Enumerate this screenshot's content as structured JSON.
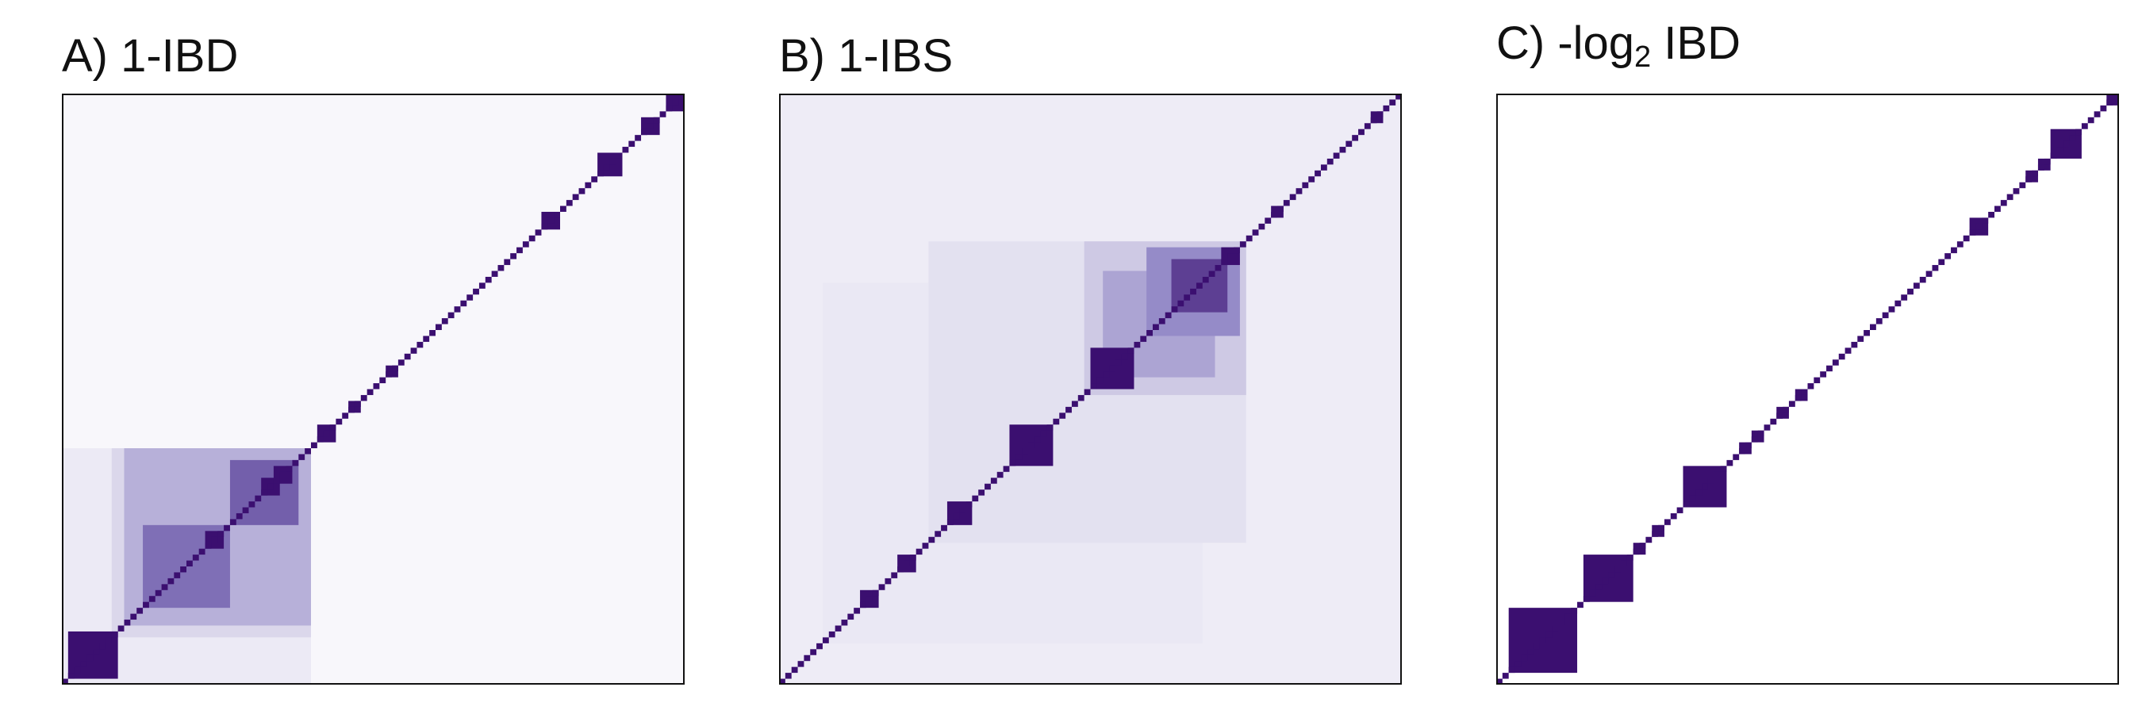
{
  "colors": {
    "max": "#3b0f70",
    "mid": "#8a7fc2",
    "light": "#d9d5ea",
    "faint": "#f3f2f9",
    "background": "#ffffff"
  },
  "chart_data": [
    {
      "type": "heatmap",
      "title": "A) 1-IBD",
      "title_parts": {
        "prefix": "A) 1-IBD",
        "sub": "",
        "suffix": ""
      },
      "xlabel": "",
      "ylabel": "",
      "grid": false,
      "legend": "none",
      "n": 100,
      "base_value": 0.03,
      "diagonal_value": 1.0,
      "blocks": [
        {
          "start": 1,
          "end": 40,
          "value": 0.12
        },
        {
          "start": 9,
          "end": 40,
          "value": 0.28
        },
        {
          "start": 11,
          "end": 40,
          "value": 0.45
        },
        {
          "start": 14,
          "end": 27,
          "value": 0.7
        },
        {
          "start": 28,
          "end": 38,
          "value": 0.75
        },
        {
          "start": 2,
          "end": 9,
          "value": 1.0
        },
        {
          "start": 24,
          "end": 26,
          "value": 1.0
        },
        {
          "start": 33,
          "end": 35,
          "value": 1.0
        },
        {
          "start": 35,
          "end": 37,
          "value": 1.0
        },
        {
          "start": 42,
          "end": 44,
          "value": 1.0
        },
        {
          "start": 47,
          "end": 48,
          "value": 1.0
        },
        {
          "start": 53,
          "end": 54,
          "value": 1.0
        },
        {
          "start": 78,
          "end": 80,
          "value": 1.0
        },
        {
          "start": 87,
          "end": 90,
          "value": 1.0
        },
        {
          "start": 94,
          "end": 96,
          "value": 1.0
        },
        {
          "start": 98,
          "end": 100,
          "value": 1.0
        }
      ]
    },
    {
      "type": "heatmap",
      "title": "B) 1-IBS",
      "title_parts": {
        "prefix": "B) 1-IBS",
        "sub": "",
        "suffix": ""
      },
      "xlabel": "",
      "ylabel": "",
      "grid": false,
      "legend": "none",
      "n": 100,
      "base_value": 0.1,
      "diagonal_value": 1.0,
      "blocks": [
        {
          "start": 8,
          "end": 68,
          "value": 0.14
        },
        {
          "start": 25,
          "end": 75,
          "value": 0.2
        },
        {
          "start": 50,
          "end": 75,
          "value": 0.35
        },
        {
          "start": 53,
          "end": 70,
          "value": 0.5
        },
        {
          "start": 51,
          "end": 57,
          "value": 1.0
        },
        {
          "start": 60,
          "end": 74,
          "value": 0.6
        },
        {
          "start": 64,
          "end": 72,
          "value": 0.85
        },
        {
          "start": 38,
          "end": 44,
          "value": 1.0
        },
        {
          "start": 28,
          "end": 31,
          "value": 1.0
        },
        {
          "start": 20,
          "end": 22,
          "value": 1.0
        },
        {
          "start": 14,
          "end": 16,
          "value": 1.0
        },
        {
          "start": 72,
          "end": 74,
          "value": 1.0
        },
        {
          "start": 80,
          "end": 81,
          "value": 1.0
        },
        {
          "start": 96,
          "end": 97,
          "value": 1.0
        }
      ]
    },
    {
      "type": "heatmap",
      "title": "C) -log2 IBD",
      "title_parts": {
        "prefix": "C) -log",
        "sub": "2",
        "suffix": " IBD"
      },
      "xlabel": "",
      "ylabel": "",
      "grid": false,
      "legend": "none",
      "n": 100,
      "base_value": 0.0,
      "diagonal_value": 1.0,
      "blocks": [
        {
          "start": 3,
          "end": 13,
          "value": 1.0
        },
        {
          "start": 15,
          "end": 22,
          "value": 1.0
        },
        {
          "start": 31,
          "end": 37,
          "value": 1.0
        },
        {
          "start": 23,
          "end": 24,
          "value": 1.0
        },
        {
          "start": 26,
          "end": 27,
          "value": 1.0
        },
        {
          "start": 40,
          "end": 41,
          "value": 1.0
        },
        {
          "start": 42,
          "end": 43,
          "value": 1.0
        },
        {
          "start": 46,
          "end": 47,
          "value": 1.0
        },
        {
          "start": 49,
          "end": 50,
          "value": 1.0
        },
        {
          "start": 77,
          "end": 79,
          "value": 1.0
        },
        {
          "start": 86,
          "end": 87,
          "value": 1.0
        },
        {
          "start": 88,
          "end": 89,
          "value": 1.0
        },
        {
          "start": 90,
          "end": 94,
          "value": 1.0
        },
        {
          "start": 99,
          "end": 100,
          "value": 1.0
        }
      ]
    }
  ]
}
